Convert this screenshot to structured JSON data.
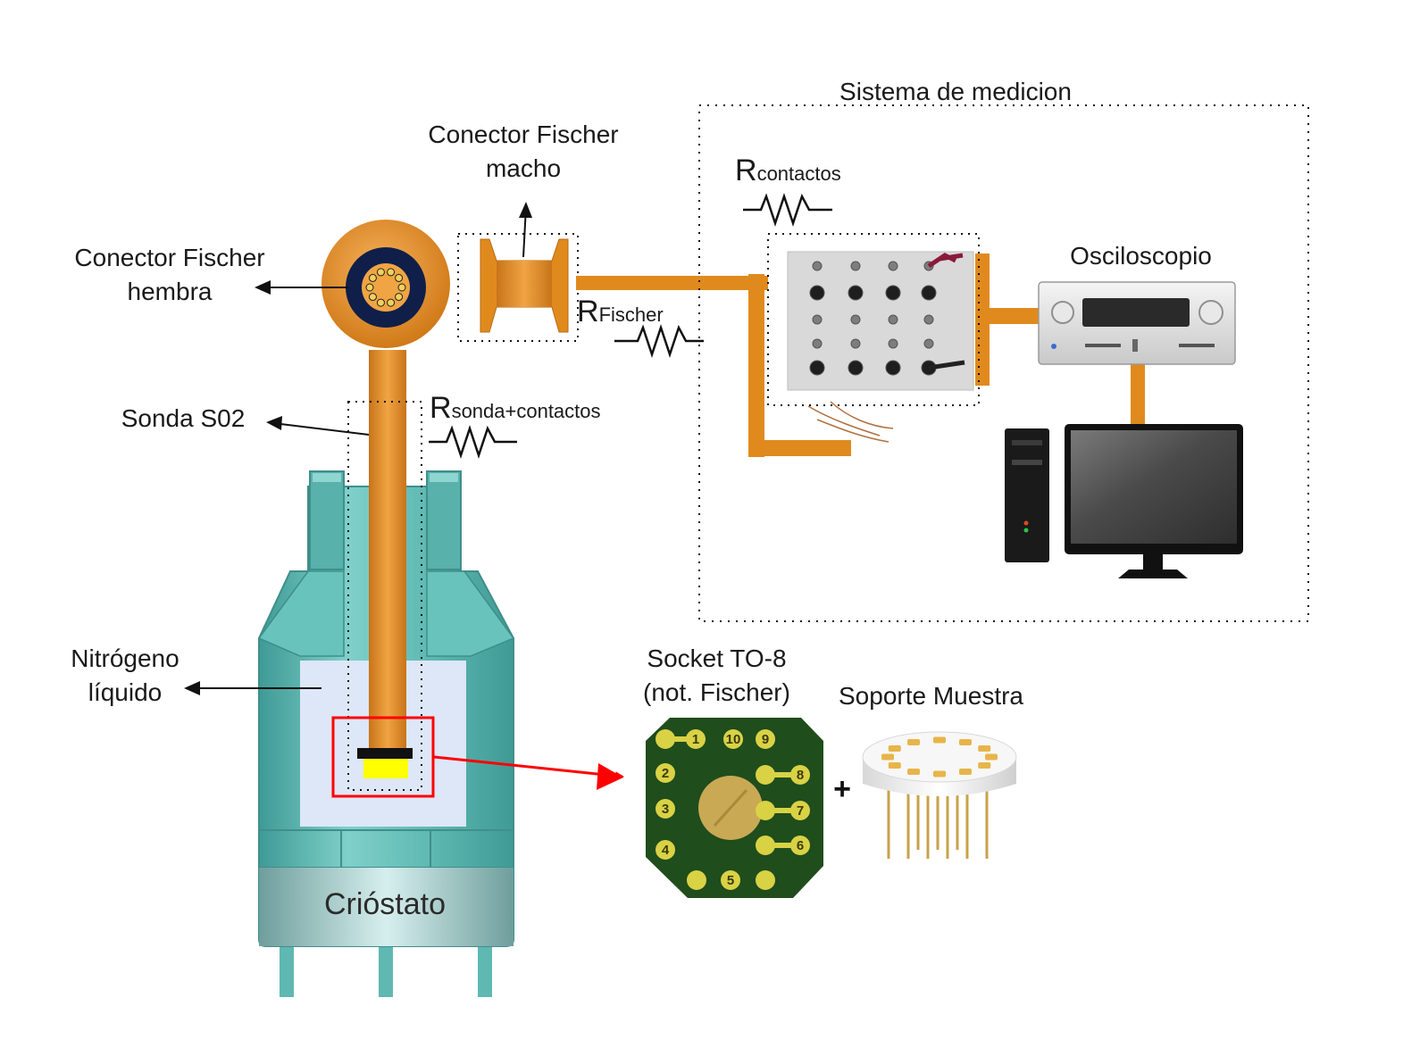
{
  "title": "Sistema de medicion",
  "labels": {
    "fischer_female": [
      "Conector Fischer",
      "hembra"
    ],
    "fischer_male": [
      "Conector Fischer",
      "macho"
    ],
    "probe": "Sonda S02",
    "nitrogen": [
      "Nitrógeno",
      "líquido"
    ],
    "cryostat": "Crióstato",
    "oscilloscope": "Osciloscopio",
    "socket": [
      "Socket TO-8",
      "(not. Fischer)"
    ],
    "sample_holder": "Soporte Muestra",
    "plus": "+"
  },
  "resistors": {
    "contacts": {
      "symbol": "R",
      "subscript": "contactos"
    },
    "fischer": {
      "symbol": "R",
      "subscript": "Fischer"
    },
    "probe": {
      "symbol": "R",
      "subscript": "sonda+contactos"
    }
  },
  "socket_pins": [
    "1",
    "2",
    "3",
    "4",
    "5",
    "6",
    "7",
    "8",
    "9",
    "10"
  ],
  "colors": {
    "cable": "#e08a1e",
    "cryostat": "#5fb8b2",
    "highlight": "#ff0000",
    "pcb": "#1f4d1c",
    "pad": "#d9d245"
  }
}
